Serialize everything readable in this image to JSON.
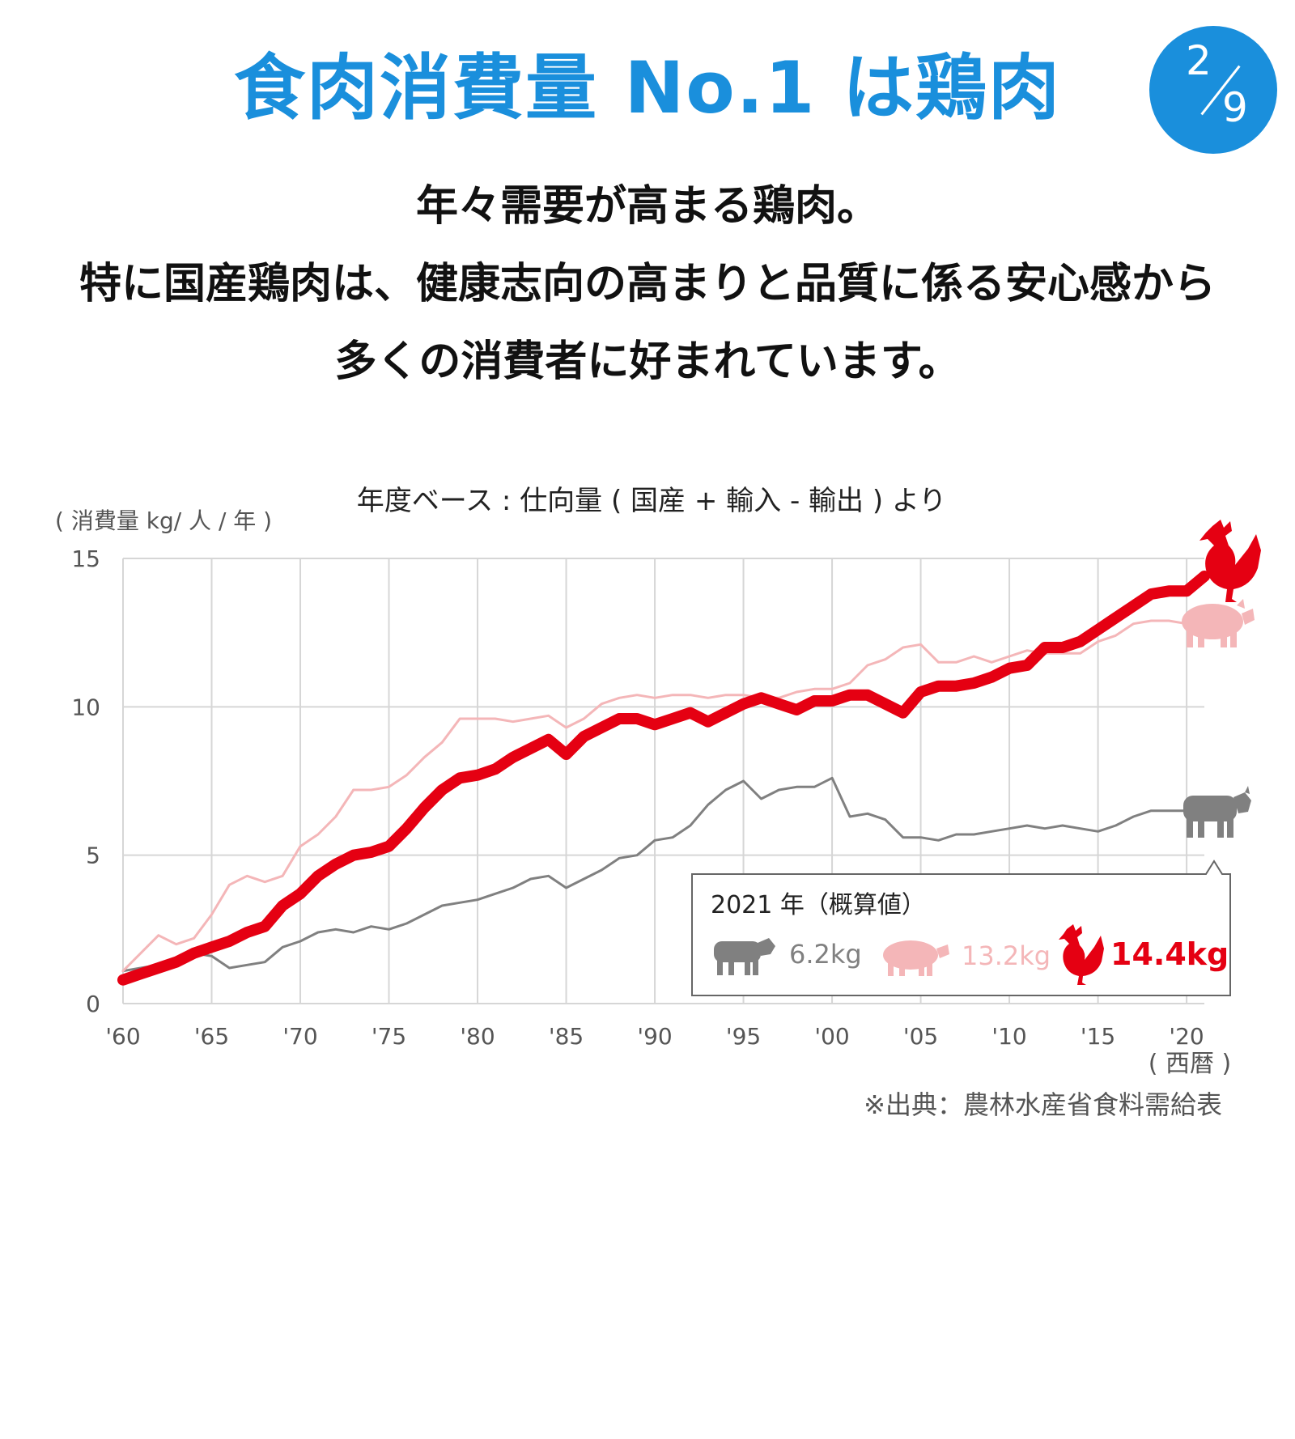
{
  "header": {
    "title": "食肉消費量 No.1 は鶏肉",
    "page_current": "2",
    "page_total": "9",
    "title_color": "#1a8fdc"
  },
  "lead": {
    "line1": "年々需要が高まる鶏肉。",
    "line2": "特に国産鶏肉は、健康志向の高まりと品質に係る安心感から",
    "line3": "多くの消費者に好まれています。"
  },
  "source_note": "※出典：農林水産省食料需給表",
  "colors": {
    "chicken": "#e50012",
    "pork": "#f4b6b8",
    "beef": "#808080",
    "grid": "#d6d6d6"
  },
  "chart_data": {
    "type": "line",
    "title": "年度ベース : 仕向量 ( 国産 + 輸入 - 輸出 ) より",
    "ylabel": "( 消費量 kg/ 人 / 年 )",
    "xlabel": "( 西暦 )",
    "ylim": [
      0,
      15
    ],
    "yticks": [
      0,
      5,
      10,
      15
    ],
    "xticks": [
      1960,
      1965,
      1970,
      1975,
      1980,
      1985,
      1990,
      1995,
      2000,
      2005,
      2010,
      2015,
      2020
    ],
    "xtick_labels": [
      "'60",
      "'65",
      "'70",
      "'75",
      "'80",
      "'85",
      "'90",
      "'95",
      "'00",
      "'05",
      "'10",
      "'15",
      "'20"
    ],
    "grid": true,
    "x": [
      1960,
      1961,
      1962,
      1963,
      1964,
      1965,
      1966,
      1967,
      1968,
      1969,
      1970,
      1971,
      1972,
      1973,
      1974,
      1975,
      1976,
      1977,
      1978,
      1979,
      1980,
      1981,
      1982,
      1983,
      1984,
      1985,
      1986,
      1987,
      1988,
      1989,
      1990,
      1991,
      1992,
      1993,
      1994,
      1995,
      1996,
      1997,
      1998,
      1999,
      2000,
      2001,
      2002,
      2003,
      2004,
      2005,
      2006,
      2007,
      2008,
      2009,
      2010,
      2011,
      2012,
      2013,
      2014,
      2015,
      2016,
      2017,
      2018,
      2019,
      2020,
      2021
    ],
    "series": [
      {
        "name": "鶏肉",
        "key": "chicken",
        "values": [
          0.8,
          1.0,
          1.2,
          1.4,
          1.7,
          1.9,
          2.1,
          2.4,
          2.6,
          3.3,
          3.7,
          4.3,
          4.7,
          5.0,
          5.1,
          5.3,
          5.9,
          6.6,
          7.2,
          7.6,
          7.7,
          7.9,
          8.3,
          8.6,
          8.9,
          8.4,
          9.0,
          9.3,
          9.6,
          9.6,
          9.4,
          9.6,
          9.8,
          9.5,
          9.8,
          10.1,
          10.3,
          10.1,
          9.9,
          10.2,
          10.2,
          10.4,
          10.4,
          10.1,
          9.8,
          10.5,
          10.7,
          10.7,
          10.8,
          11.0,
          11.3,
          11.4,
          12.0,
          12.0,
          12.2,
          12.6,
          13.0,
          13.4,
          13.8,
          13.9,
          13.9,
          14.4
        ]
      },
      {
        "name": "豚肉",
        "key": "pork",
        "values": [
          1.1,
          1.7,
          2.3,
          2.0,
          2.2,
          3.0,
          4.0,
          4.3,
          4.1,
          4.3,
          5.3,
          5.7,
          6.3,
          7.2,
          7.2,
          7.3,
          7.7,
          8.3,
          8.8,
          9.6,
          9.6,
          9.6,
          9.5,
          9.6,
          9.7,
          9.3,
          9.6,
          10.1,
          10.3,
          10.4,
          10.3,
          10.4,
          10.4,
          10.3,
          10.4,
          10.4,
          10.3,
          10.3,
          10.5,
          10.6,
          10.6,
          10.8,
          11.4,
          11.6,
          12.0,
          12.1,
          11.5,
          11.5,
          11.7,
          11.5,
          11.7,
          11.9,
          11.8,
          11.8,
          11.8,
          12.2,
          12.4,
          12.8,
          12.9,
          12.9,
          12.8,
          13.2
        ]
      },
      {
        "name": "牛肉",
        "key": "beef",
        "values": [
          1.1,
          1.2,
          1.3,
          1.5,
          1.7,
          1.6,
          1.2,
          1.3,
          1.4,
          1.9,
          2.1,
          2.4,
          2.5,
          2.4,
          2.6,
          2.5,
          2.7,
          3.0,
          3.3,
          3.4,
          3.5,
          3.7,
          3.9,
          4.2,
          4.3,
          3.9,
          4.2,
          4.5,
          4.9,
          5.0,
          5.5,
          5.6,
          6.0,
          6.7,
          7.2,
          7.5,
          6.9,
          7.2,
          7.3,
          7.3,
          7.6,
          6.3,
          6.4,
          6.2,
          5.6,
          5.6,
          5.5,
          5.7,
          5.7,
          5.8,
          5.9,
          6.0,
          5.9,
          6.0,
          5.9,
          5.8,
          6.0,
          6.3,
          6.5,
          6.5,
          6.5,
          6.2
        ]
      }
    ],
    "callout": {
      "heading": "2021 年（概算値）",
      "beef": "6.2kg",
      "pork": "13.2kg",
      "chicken": "14.4kg"
    }
  }
}
